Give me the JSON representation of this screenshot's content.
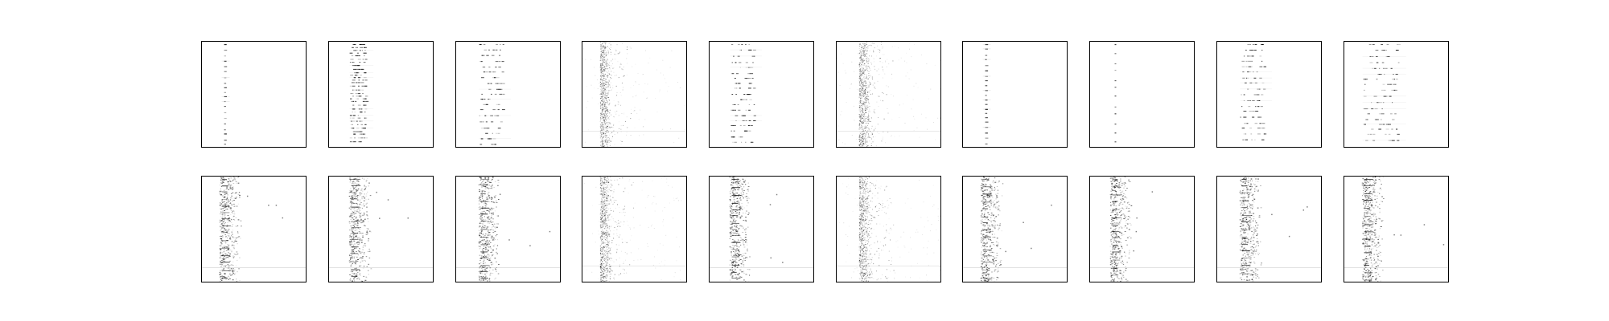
{
  "figure": {
    "background_color": "#ffffff",
    "border_color": "#000000",
    "ink_color": "#000000",
    "rows": 2,
    "columns": 10,
    "panels": [
      {
        "row": 0,
        "col": 0,
        "pattern": "sparse-single-column"
      },
      {
        "row": 0,
        "col": 1,
        "pattern": "dense-multi-column"
      },
      {
        "row": 0,
        "col": 2,
        "pattern": "periodic-rows"
      },
      {
        "row": 0,
        "col": 3,
        "pattern": "noisy-vertical-band"
      },
      {
        "row": 0,
        "col": 4,
        "pattern": "periodic-rows"
      },
      {
        "row": 0,
        "col": 5,
        "pattern": "noisy-vertical-band"
      },
      {
        "row": 0,
        "col": 6,
        "pattern": "sparse-single-column"
      },
      {
        "row": 0,
        "col": 7,
        "pattern": "very-sparse-column"
      },
      {
        "row": 0,
        "col": 8,
        "pattern": "periodic-rows"
      },
      {
        "row": 0,
        "col": 9,
        "pattern": "periodic-rows-wide"
      },
      {
        "row": 1,
        "col": 0,
        "pattern": "noisy-column-with-outliers"
      },
      {
        "row": 1,
        "col": 1,
        "pattern": "noisy-column-with-outliers"
      },
      {
        "row": 1,
        "col": 2,
        "pattern": "noisy-column-with-outliers"
      },
      {
        "row": 1,
        "col": 3,
        "pattern": "noisy-vertical-band"
      },
      {
        "row": 1,
        "col": 4,
        "pattern": "noisy-column-with-outliers"
      },
      {
        "row": 1,
        "col": 5,
        "pattern": "noisy-vertical-band"
      },
      {
        "row": 1,
        "col": 6,
        "pattern": "noisy-column-with-outliers"
      },
      {
        "row": 1,
        "col": 7,
        "pattern": "noisy-column-with-outliers"
      },
      {
        "row": 1,
        "col": 8,
        "pattern": "noisy-column-with-outliers"
      },
      {
        "row": 1,
        "col": 9,
        "pattern": "noisy-column-with-outliers"
      }
    ]
  }
}
